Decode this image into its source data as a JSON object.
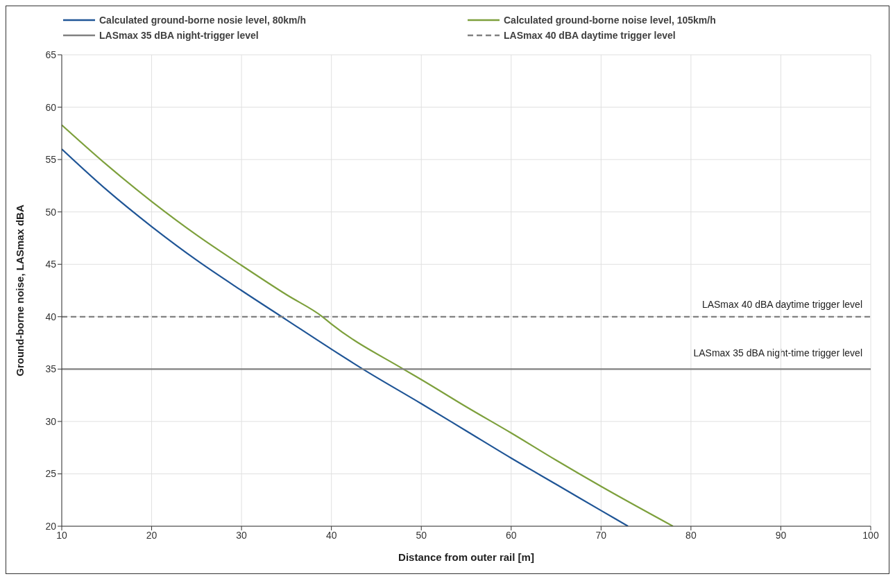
{
  "chart_data": {
    "type": "line",
    "xlabel": "Distance from outer rail [m]",
    "ylabel": "Ground-borne noise, LASmax dBA",
    "xlim": [
      10,
      100
    ],
    "xticks": [
      10,
      20,
      30,
      40,
      50,
      60,
      70,
      80,
      90,
      100
    ],
    "ylim": [
      20,
      65
    ],
    "yticks": [
      20,
      25,
      30,
      35,
      40,
      45,
      50,
      55,
      60,
      65
    ],
    "grid": true,
    "legend": "top",
    "marker": "none",
    "series": [
      {
        "name": "Calculated ground-borne nosie level, 80km/h",
        "color": "#1f5596",
        "line_style": "solid",
        "x": [
          10,
          15,
          20,
          25,
          30,
          35,
          40,
          43.5,
          50,
          55,
          60,
          65,
          70,
          73
        ],
        "values": [
          56,
          52.1,
          48.6,
          45.4,
          42.5,
          39.7,
          36.9,
          35,
          31.7,
          29.1,
          26.5,
          24,
          21.5,
          20
        ]
      },
      {
        "name": "Calculated ground-borne noise level, 105km/h",
        "color": "#7da03c",
        "line_style": "solid",
        "x": [
          10,
          15,
          20,
          25,
          30,
          35,
          39,
          40,
          48,
          50,
          55,
          60,
          65,
          70,
          78
        ],
        "values": [
          58.3,
          54.5,
          51,
          47.8,
          44.9,
          42.1,
          40,
          39.3,
          35,
          34,
          31.4,
          28.9,
          26.3,
          23.8,
          20
        ]
      },
      {
        "name": "LASmax 35 dBA night-trigger level",
        "color": "#808080",
        "line_style": "solid",
        "x": [
          10,
          100
        ],
        "values": [
          35,
          35
        ]
      },
      {
        "name": "LASmax 40 dBA daytime trigger level",
        "color": "#808080",
        "line_style": "dashed",
        "x": [
          10,
          100
        ],
        "values": [
          40,
          40
        ]
      }
    ],
    "annotations": [
      "LASmax 40 dBA daytime trigger level",
      "LASmax 35 dBA night-time trigger level"
    ]
  }
}
